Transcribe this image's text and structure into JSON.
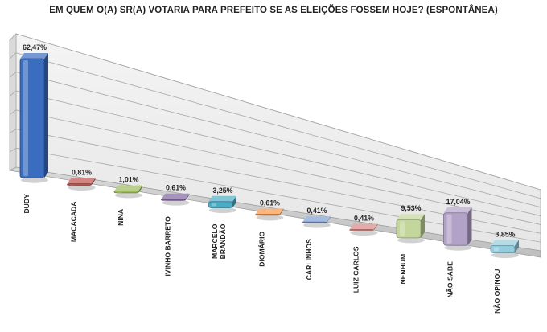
{
  "chart_data": {
    "type": "bar",
    "title": "EM QUEM O(A) SR(A) VOTARIA PARA PREFEITO SE AS ELEIÇÕES FOSSEM HOJE? (ESPONTÂNEA)",
    "categories": [
      "DUDY",
      "MACACADA",
      "NINA",
      "IVINHO BARRETO",
      "MARCELO BRANDÃO",
      "DIOMÁRIO",
      "CARLINHOS",
      "LUIZ CARLOS",
      "NENHUM",
      "NÃO SABE",
      "NÃO OPINOU"
    ],
    "values": [
      62.47,
      0.81,
      1.01,
      0.61,
      3.25,
      0.61,
      0.41,
      0.41,
      9.53,
      17.04,
      3.85
    ],
    "data_labels": [
      "62,47%",
      "0,81%",
      "1,01%",
      "0,61%",
      "3,25%",
      "0,61%",
      "0,41%",
      "0,41%",
      "9,53%",
      "17,04%",
      "3,85%"
    ],
    "colors": [
      "#3a6cc0",
      "#c0504d",
      "#9bbb59",
      "#8064a2",
      "#4bacc6",
      "#f79646",
      "#7f9fd6",
      "#d98785",
      "#c3d69b",
      "#b3a2c7",
      "#93cddd"
    ],
    "ylim": [
      0,
      70
    ],
    "grid": true,
    "legend": "none"
  }
}
